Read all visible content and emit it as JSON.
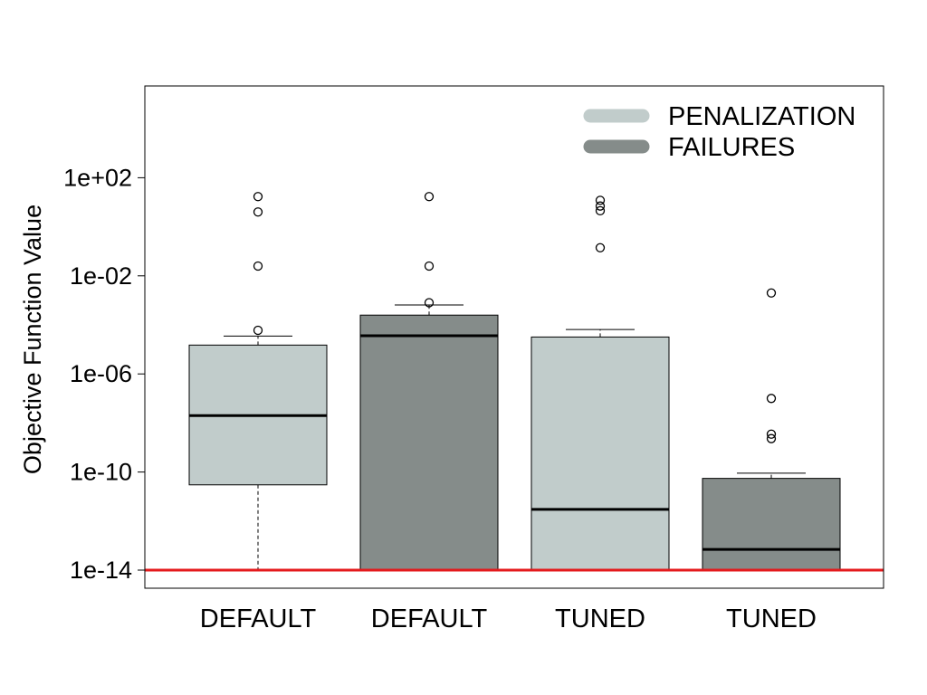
{
  "chart_data": {
    "type": "boxplot",
    "y_scale": "log10",
    "ylim": [
      1e-14,
      1000000.0
    ],
    "ylabel": "Objective Function Value",
    "xlabel": "",
    "title": "",
    "yticks": [
      {
        "value": 1e-14,
        "label": "1e-14"
      },
      {
        "value": 1e-10,
        "label": "1e-10"
      },
      {
        "value": 1e-06,
        "label": "1e-06"
      },
      {
        "value": 0.01,
        "label": "1e-02"
      },
      {
        "value": 100.0,
        "label": "1e+02"
      }
    ],
    "reference_line": {
      "value": 1e-14,
      "color": "#e41a1c"
    },
    "grid": false,
    "legend": {
      "position": "top-right",
      "entries": [
        {
          "label": "PENALIZATION",
          "color": "#c1cccb"
        },
        {
          "label": "FAILURES",
          "color": "#858c8a"
        }
      ]
    },
    "groups": [
      {
        "category": "DEFAULT",
        "series": "PENALIZATION",
        "fill": "#c1cccb",
        "whisker_low": 1e-14,
        "q1": 3e-11,
        "median": 2e-08,
        "q3": 1.5e-05,
        "whisker_high": 3.5e-05,
        "outliers": [
          6e-05,
          0.025,
          4.0,
          17.0
        ]
      },
      {
        "category": "DEFAULT",
        "series": "FAILURES",
        "fill": "#858c8a",
        "whisker_low": 1e-14,
        "q1": 1e-14,
        "median": 3.6e-05,
        "q3": 0.00025,
        "whisker_high": 0.00065,
        "outliers": [
          0.0008,
          0.025,
          17.0
        ]
      },
      {
        "category": "TUNED",
        "series": "PENALIZATION",
        "fill": "#c1cccb",
        "whisker_low": 1e-14,
        "q1": 1e-14,
        "median": 3e-12,
        "q3": 3.2e-05,
        "whisker_high": 6.5e-05,
        "outliers": [
          0.14,
          4.5,
          7.0,
          12.0
        ]
      },
      {
        "category": "TUNED",
        "series": "FAILURES",
        "fill": "#858c8a",
        "whisker_low": 1e-14,
        "q1": 1e-14,
        "median": 7e-14,
        "q3": 5.5e-11,
        "whisker_high": 9e-11,
        "outliers": [
          2.3e-09,
          3.5e-09,
          1e-07,
          0.002
        ]
      }
    ]
  }
}
